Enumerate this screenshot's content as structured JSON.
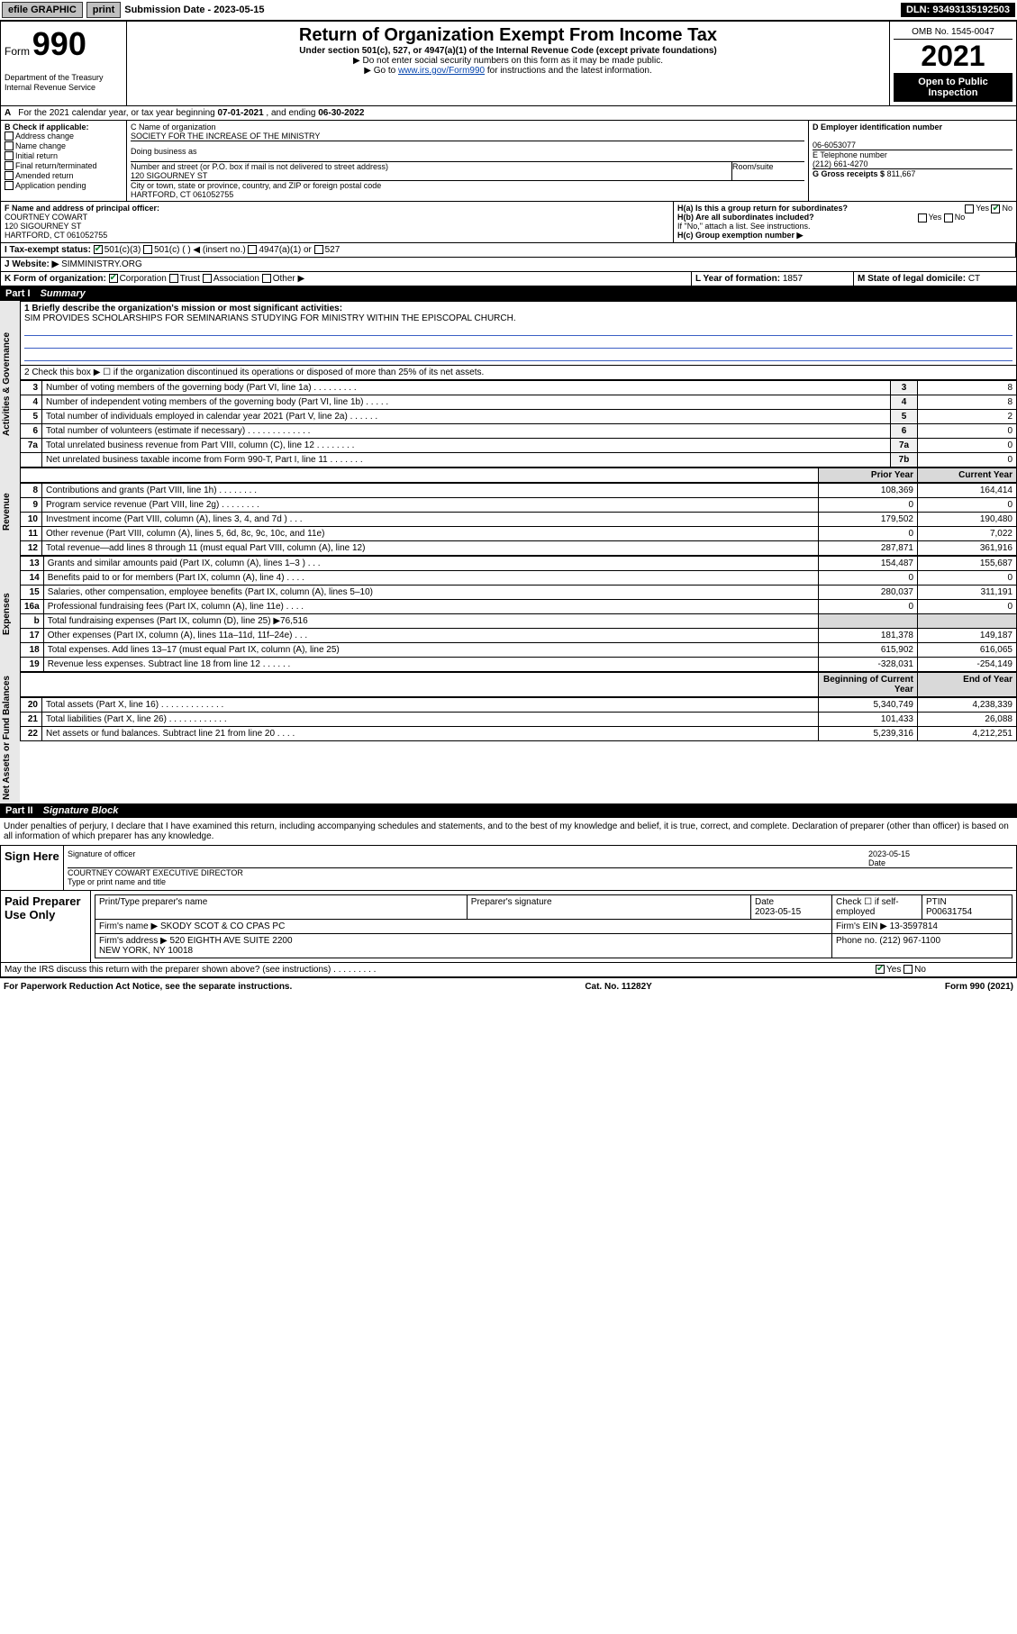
{
  "topbar": {
    "efile": "efile GRAPHIC",
    "print": "print",
    "sub_label": "Submission Date - 2023-05-15",
    "dln": "DLN: 93493135192503"
  },
  "header": {
    "form_prefix": "Form",
    "form_no": "990",
    "dept": "Department of the Treasury",
    "irs": "Internal Revenue Service",
    "title": "Return of Organization Exempt From Income Tax",
    "subtitle": "Under section 501(c), 527, or 4947(a)(1) of the Internal Revenue Code (except private foundations)",
    "no_ssn": "▶ Do not enter social security numbers on this form as it may be made public.",
    "goto": "▶ Go to ",
    "goto_link": "www.irs.gov/Form990",
    "goto_rest": " for instructions and the latest information.",
    "omb": "OMB No. 1545-0047",
    "year": "2021",
    "open": "Open to Public Inspection"
  },
  "period": {
    "text": "For the 2021 calendar year, or tax year beginning ",
    "begin": "07-01-2021",
    "mid": " , and ending ",
    "end": "06-30-2022"
  },
  "boxB": {
    "label": "B Check if applicable:",
    "items": [
      "Address change",
      "Name change",
      "Initial return",
      "Final return/terminated",
      "Amended return",
      "Application pending"
    ]
  },
  "boxC": {
    "name_label": "C Name of organization",
    "name": "SOCIETY FOR THE INCREASE OF THE MINISTRY",
    "dba_label": "Doing business as",
    "addr_label": "Number and street (or P.O. box if mail is not delivered to street address)",
    "room_label": "Room/suite",
    "street": "120 SIGOURNEY ST",
    "city_label": "City or town, state or province, country, and ZIP or foreign postal code",
    "city": "HARTFORD, CT  061052755"
  },
  "boxD": {
    "label": "D Employer identification number",
    "val": "06-6053077"
  },
  "boxE": {
    "label": "E Telephone number",
    "val": "(212) 661-4270"
  },
  "boxG": {
    "label": "G Gross receipts $ ",
    "val": "811,667"
  },
  "boxF": {
    "label": "F Name and address of principal officer:",
    "name": "COURTNEY COWART",
    "street": "120 SIGOURNEY ST",
    "city": "HARTFORD, CT  061052755"
  },
  "boxH": {
    "a_label": "H(a)  Is this a group return for subordinates?",
    "a_yes": "Yes",
    "a_no": "No",
    "b_label": "H(b)  Are all subordinates included?",
    "b_note": "If \"No,\" attach a list. See instructions.",
    "c_label": "H(c)  Group exemption number ▶"
  },
  "boxI": {
    "label": "I   Tax-exempt status:",
    "opt1": "501(c)(3)",
    "opt2": "501(c) (   ) ◀ (insert no.)",
    "opt3": "4947(a)(1) or",
    "opt4": "527"
  },
  "boxJ": {
    "label": "J   Website: ▶",
    "val": "SIMMINISTRY.ORG"
  },
  "boxK": {
    "label": "K Form of organization:",
    "opts": [
      "Corporation",
      "Trust",
      "Association",
      "Other ▶"
    ]
  },
  "boxL": {
    "label": "L Year of formation: ",
    "val": "1857"
  },
  "boxM": {
    "label": "M State of legal domicile: ",
    "val": "CT"
  },
  "part1": {
    "label": "Part I",
    "title": "Summary"
  },
  "summary": {
    "l1_label": "1   Briefly describe the organization's mission or most significant activities:",
    "l1_text": "SIM PROVIDES SCHOLARSHIPS FOR SEMINARIANS STUDYING FOR MINISTRY WITHIN THE EPISCOPAL CHURCH.",
    "l2": "2   Check this box ▶ ☐  if the organization discontinued its operations or disposed of more than 25% of its net assets.",
    "rows_top": [
      {
        "n": "3",
        "t": "Number of voting members of the governing body (Part VI, line 1a)  .   .   .   .   .   .   .   .   .",
        "box": "3",
        "v": "8"
      },
      {
        "n": "4",
        "t": "Number of independent voting members of the governing body (Part VI, line 1b)  .   .   .   .   .",
        "box": "4",
        "v": "8"
      },
      {
        "n": "5",
        "t": "Total number of individuals employed in calendar year 2021 (Part V, line 2a)  .   .   .   .   .   .",
        "box": "5",
        "v": "2"
      },
      {
        "n": "6",
        "t": "Total number of volunteers (estimate if necessary)  .   .   .   .   .   .   .   .   .   .   .   .   .",
        "box": "6",
        "v": "0"
      },
      {
        "n": "7a",
        "t": "Total unrelated business revenue from Part VIII, column (C), line 12  .   .   .   .   .   .   .   .",
        "box": "7a",
        "v": "0"
      },
      {
        "n": "",
        "t": "Net unrelated business taxable income from Form 990-T, Part I, line 11  .   .   .   .   .   .   .",
        "box": "7b",
        "v": "0"
      }
    ],
    "col_hdr_prior": "Prior Year",
    "col_hdr_curr": "Current Year",
    "sections": {
      "governance": "Activities & Governance",
      "revenue": "Revenue",
      "expenses": "Expenses",
      "net": "Net Assets or Fund Balances"
    },
    "rev_rows": [
      {
        "n": "8",
        "t": "Contributions and grants (Part VIII, line 1h)  .   .   .   .   .   .   .   .",
        "p": "108,369",
        "c": "164,414"
      },
      {
        "n": "9",
        "t": "Program service revenue (Part VIII, line 2g)  .   .   .   .   .   .   .   .",
        "p": "0",
        "c": "0"
      },
      {
        "n": "10",
        "t": "Investment income (Part VIII, column (A), lines 3, 4, and 7d )  .   .   .",
        "p": "179,502",
        "c": "190,480"
      },
      {
        "n": "11",
        "t": "Other revenue (Part VIII, column (A), lines 5, 6d, 8c, 9c, 10c, and 11e)",
        "p": "0",
        "c": "7,022"
      },
      {
        "n": "12",
        "t": "Total revenue—add lines 8 through 11 (must equal Part VIII, column (A), line 12)",
        "p": "287,871",
        "c": "361,916"
      }
    ],
    "exp_rows": [
      {
        "n": "13",
        "t": "Grants and similar amounts paid (Part IX, column (A), lines 1–3 )  .   .   .",
        "p": "154,487",
        "c": "155,687"
      },
      {
        "n": "14",
        "t": "Benefits paid to or for members (Part IX, column (A), line 4)  .   .   .   .",
        "p": "0",
        "c": "0"
      },
      {
        "n": "15",
        "t": "Salaries, other compensation, employee benefits (Part IX, column (A), lines 5–10)",
        "p": "280,037",
        "c": "311,191"
      },
      {
        "n": "16a",
        "t": "Professional fundraising fees (Part IX, column (A), line 11e)  .   .   .   .",
        "p": "0",
        "c": "0"
      },
      {
        "n": "b",
        "t": "Total fundraising expenses (Part IX, column (D), line 25) ▶76,516",
        "p": "",
        "c": "",
        "shade": true
      },
      {
        "n": "17",
        "t": "Other expenses (Part IX, column (A), lines 11a–11d, 11f–24e)  .   .   .",
        "p": "181,378",
        "c": "149,187"
      },
      {
        "n": "18",
        "t": "Total expenses. Add lines 13–17 (must equal Part IX, column (A), line 25)",
        "p": "615,902",
        "c": "616,065"
      },
      {
        "n": "19",
        "t": "Revenue less expenses. Subtract line 18 from line 12  .   .   .   .   .   .",
        "p": "-328,031",
        "c": "-254,149"
      }
    ],
    "net_hdr_begin": "Beginning of Current Year",
    "net_hdr_end": "End of Year",
    "net_rows": [
      {
        "n": "20",
        "t": "Total assets (Part X, line 16)  .   .   .   .   .   .   .   .   .   .   .   .   .",
        "p": "5,340,749",
        "c": "4,238,339"
      },
      {
        "n": "21",
        "t": "Total liabilities (Part X, line 26)  .   .   .   .   .   .   .   .   .   .   .   .",
        "p": "101,433",
        "c": "26,088"
      },
      {
        "n": "22",
        "t": "Net assets or fund balances. Subtract line 21 from line 20  .   .   .   .",
        "p": "5,239,316",
        "c": "4,212,251"
      }
    ]
  },
  "part2": {
    "label": "Part II",
    "title": "Signature Block"
  },
  "sig": {
    "perjury": "Under penalties of perjury, I declare that I have examined this return, including accompanying schedules and statements, and to the best of my knowledge and belief, it is true, correct, and complete. Declaration of preparer (other than officer) is based on all information of which preparer has any knowledge.",
    "sign_here": "Sign Here",
    "sig_officer": "Signature of officer",
    "date_label": "Date",
    "date": "2023-05-15",
    "name_title": "COURTNEY COWART  EXECUTIVE DIRECTOR",
    "type_name": "Type or print name and title"
  },
  "paid": {
    "label": "Paid Preparer Use Only",
    "col_preparer": "Print/Type preparer's name",
    "col_sig": "Preparer's signature",
    "col_date": "Date",
    "date": "2023-05-15",
    "check_if": "Check ☐ if self-employed",
    "ptin_label": "PTIN",
    "ptin": "P00631754",
    "firm_name_label": "Firm's name    ▶",
    "firm_name": "SKODY SCOT & CO CPAS PC",
    "firm_ein_label": "Firm's EIN ▶",
    "firm_ein": "13-3597814",
    "firm_addr_label": "Firm's address ▶",
    "firm_addr1": "520 EIGHTH AVE SUITE 2200",
    "firm_addr2": "NEW YORK, NY  10018",
    "phone_label": "Phone no.",
    "phone": "(212) 967-1100"
  },
  "discuss": {
    "text": "May the IRS discuss this return with the preparer shown above? (see instructions)  .   .   .   .   .   .   .   .   .",
    "yes": "Yes",
    "no": "No"
  },
  "footer": {
    "left": "For Paperwork Reduction Act Notice, see the separate instructions.",
    "mid": "Cat. No. 11282Y",
    "right": "Form 990 (2021)"
  }
}
